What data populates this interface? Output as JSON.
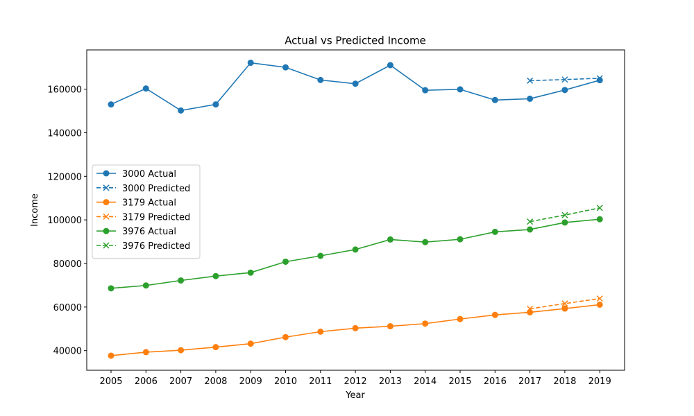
{
  "chart_data": {
    "type": "line",
    "title": "Actual vs Predicted Income",
    "xlabel": "Year",
    "ylabel": "Income",
    "categories": [
      "2005",
      "2006",
      "2007",
      "2008",
      "2009",
      "2010",
      "2011",
      "2012",
      "2013",
      "2014",
      "2015",
      "2016",
      "2017",
      "2018",
      "2019"
    ],
    "y_ticks": [
      40000,
      60000,
      80000,
      100000,
      120000,
      140000,
      160000
    ],
    "ylim": [
      31000,
      178000
    ],
    "grid": false,
    "legend_position": "center-left",
    "series": [
      {
        "name": "3000 Actual",
        "color": "#1f77b4",
        "style": "solid",
        "marker": "circle",
        "x": [
          "2005",
          "2006",
          "2007",
          "2008",
          "2009",
          "2010",
          "2011",
          "2012",
          "2013",
          "2014",
          "2015",
          "2016",
          "2017",
          "2018",
          "2019"
        ],
        "values": [
          153000,
          160300,
          150200,
          153000,
          172100,
          170000,
          164200,
          162500,
          171000,
          159500,
          159900,
          155000,
          155600,
          159600,
          164100
        ]
      },
      {
        "name": "3000 Predicted",
        "color": "#1f77b4",
        "style": "dashed",
        "marker": "x",
        "x": [
          "2017",
          "2018",
          "2019"
        ],
        "values": [
          163900,
          164400,
          165000
        ]
      },
      {
        "name": "3179 Actual",
        "color": "#ff7f0e",
        "style": "solid",
        "marker": "circle",
        "x": [
          "2005",
          "2006",
          "2007",
          "2008",
          "2009",
          "2010",
          "2011",
          "2012",
          "2013",
          "2014",
          "2015",
          "2016",
          "2017",
          "2018",
          "2019"
        ],
        "values": [
          37700,
          39300,
          40200,
          41600,
          43200,
          46200,
          48700,
          50300,
          51200,
          52400,
          54500,
          56400,
          57600,
          59300,
          61100
        ]
      },
      {
        "name": "3179 Predicted",
        "color": "#ff7f0e",
        "style": "dashed",
        "marker": "x",
        "x": [
          "2017",
          "2018",
          "2019"
        ],
        "values": [
          59200,
          61600,
          63900
        ]
      },
      {
        "name": "3976 Actual",
        "color": "#2ca02c",
        "style": "solid",
        "marker": "circle",
        "x": [
          "2005",
          "2006",
          "2007",
          "2008",
          "2009",
          "2010",
          "2011",
          "2012",
          "2013",
          "2014",
          "2015",
          "2016",
          "2017",
          "2018",
          "2019"
        ],
        "values": [
          68600,
          69900,
          72200,
          74200,
          75800,
          80800,
          83500,
          86400,
          91000,
          89800,
          91100,
          94500,
          95600,
          98800,
          100300
        ]
      },
      {
        "name": "3976 Predicted",
        "color": "#2ca02c",
        "style": "dashed",
        "marker": "x",
        "x": [
          "2017",
          "2018",
          "2019"
        ],
        "values": [
          99200,
          102200,
          105500
        ]
      }
    ]
  }
}
